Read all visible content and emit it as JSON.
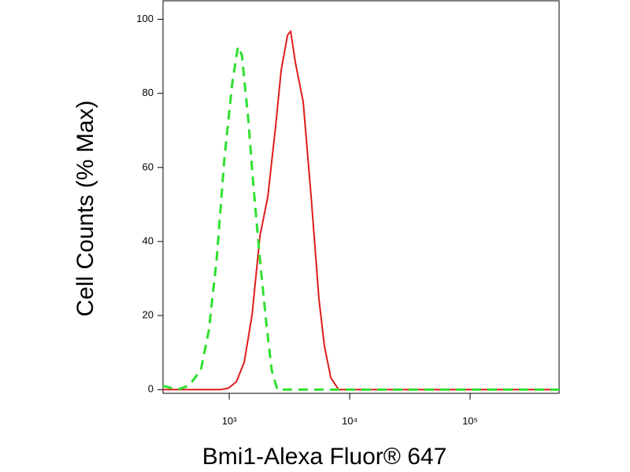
{
  "chart_data": {
    "type": "line",
    "x_label": "Bmi1-Alexa Fluor® 647",
    "y_label": "Cell Counts (% Max)",
    "log_x": true,
    "xlim": [
      282,
      548000
    ],
    "ylim": [
      -1,
      105
    ],
    "xticks": [
      {
        "value": 1000,
        "label": "10³"
      },
      {
        "value": 10000,
        "label": "10⁴"
      },
      {
        "value": 100000,
        "label": "10⁵"
      }
    ],
    "yticks": [
      0,
      20,
      40,
      60,
      80,
      100
    ],
    "series": [
      {
        "color": "#e01b1b",
        "dash": false,
        "x": [
          282,
          627,
          847,
          985,
          1145,
          1331,
          1548,
          1799,
          2090,
          2431,
          2699,
          3046,
          3236,
          3540,
          4114,
          4783,
          5559,
          6177,
          6970,
          8093,
          9415,
          548000
        ],
        "values": [
          0,
          0,
          0,
          0.4,
          2.1,
          7.4,
          20.2,
          41.5,
          52.1,
          71.3,
          86.2,
          95.7,
          96.8,
          88.3,
          77.7,
          52.1,
          24.5,
          11.7,
          3.2,
          0,
          0,
          0
        ]
      },
      {
        "color": "#2ee02e",
        "dash": true,
        "x": [
          282,
          371,
          464,
          582,
          677,
          786,
          914,
          1062,
          1180,
          1272,
          1436,
          1596,
          1799,
          2028,
          2253,
          2507,
          2825,
          548000
        ],
        "values": [
          1,
          0,
          1.1,
          5.3,
          16,
          35.1,
          62.8,
          83,
          92.6,
          90.4,
          73.4,
          54.3,
          35.1,
          18.1,
          5.3,
          0,
          0,
          0
        ]
      }
    ]
  }
}
